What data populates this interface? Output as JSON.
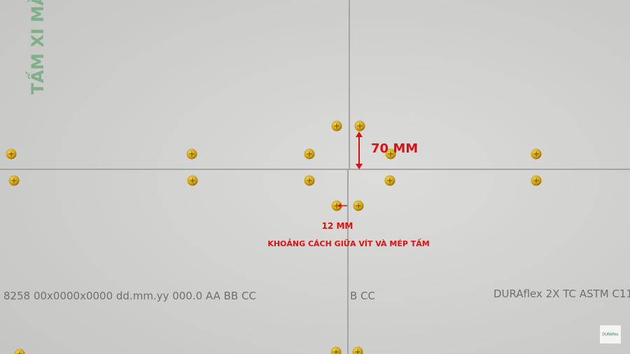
{
  "watermark": "TẤM XI MĂN",
  "dimension_vertical": "70 MM",
  "dimension_horizontal": "12 MM",
  "caption": "KHOẢNG CÁCH GIỮA VÍT VÀ MÉP TẤM",
  "panel_prints": [
    "8258 00x0000x0000 dd.mm.yy 000.0 AA BB CC",
    "B CC",
    "DURAflex 2X TC ASTM C11"
  ],
  "logo": "DURAflex"
}
